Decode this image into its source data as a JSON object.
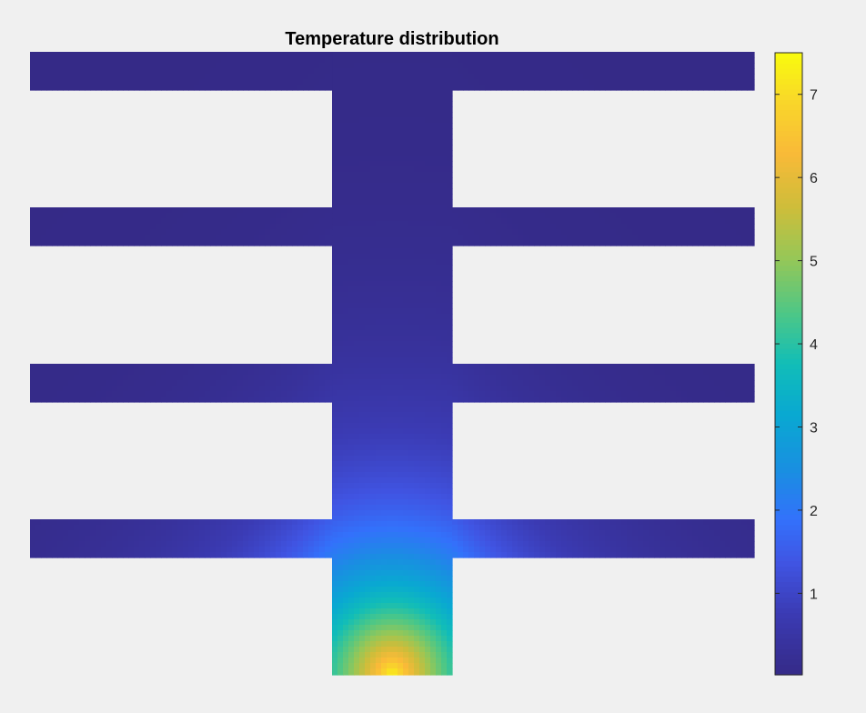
{
  "chart_data": {
    "type": "heatmap",
    "title": "Temperature distribution",
    "xlabel": "",
    "ylabel": "",
    "colormap": "parula",
    "colorbar": {
      "min": 0.02,
      "max": 7.5,
      "ticks": [
        1,
        2,
        3,
        4,
        5,
        6,
        7
      ],
      "tick_labels": [
        "1",
        "2",
        "3",
        "4",
        "5",
        "6",
        "7"
      ]
    },
    "field": {
      "description_free": true,
      "hot_spot_value": 7.4,
      "fins_tip_value": 0.1,
      "stem_top_value": 0.1
    },
    "legend": "none",
    "grid": false
  },
  "colors": {
    "background": "#f0f0f0",
    "parula_low": "#352a87",
    "parula_high": "#f9fb0e"
  }
}
